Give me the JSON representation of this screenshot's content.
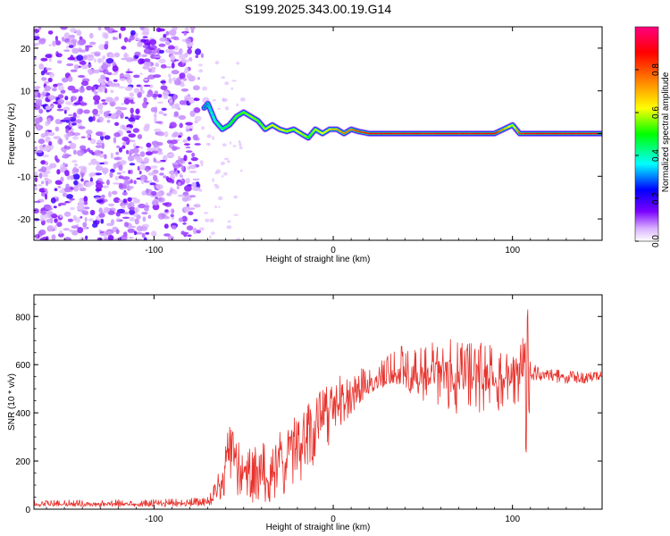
{
  "title": "S199.2025.343.00.19.G14",
  "chart_data": [
    {
      "type": "heatmap",
      "xlabel": "Height of straight line (km)",
      "ylabel": "Frequency (Hz)",
      "xlim": [
        -167,
        150
      ],
      "ylim": [
        -25,
        25
      ],
      "xticks": [
        -100,
        0,
        100
      ],
      "xtick_labels": [
        "-100",
        "0",
        "100"
      ],
      "yticks": [
        20,
        10,
        0,
        -10,
        -20
      ],
      "ytick_labels": [
        "20",
        "10",
        "0",
        "-10",
        "-20"
      ],
      "grid": false,
      "colorbar": {
        "label": "Normalized spectral amplitude",
        "range": [
          0,
          1
        ],
        "ticks": [
          0.0,
          0.2,
          0.4,
          0.6,
          0.8
        ],
        "tick_labels": [
          "0.0",
          "0.2",
          "0.4",
          "0.6",
          "0.8"
        ],
        "colors": [
          "#ffffff",
          "#c080ff",
          "#6a00ff",
          "#0000ff",
          "#00ffff",
          "#00ff00",
          "#ffff00",
          "#ff8000",
          "#ff0000",
          "#ff0080"
        ]
      },
      "noise_region_x": [
        -167,
        -75
      ],
      "signal_trace": {
        "x": [
          -72,
          -70,
          -66,
          -62,
          -58,
          -54,
          -50,
          -46,
          -42,
          -38,
          -34,
          -30,
          -26,
          -22,
          -18,
          -14,
          -10,
          -6,
          -2,
          2,
          6,
          10,
          14,
          20,
          30,
          40,
          50,
          60,
          70,
          80,
          90,
          100,
          104,
          108,
          120,
          135,
          150
        ],
        "freq": [
          6,
          7,
          3,
          1,
          2,
          4,
          5,
          4,
          3,
          1,
          2,
          1,
          0.5,
          1,
          0,
          -1,
          1,
          0,
          1,
          1,
          0,
          1,
          0.5,
          0,
          0,
          0,
          0,
          0,
          0,
          0,
          0,
          2,
          0,
          0,
          0,
          0,
          0
        ],
        "amplitude": [
          0.3,
          0.35,
          0.4,
          0.45,
          0.5,
          0.55,
          0.55,
          0.6,
          0.55,
          0.6,
          0.65,
          0.7,
          0.6,
          0.6,
          0.65,
          0.55,
          0.6,
          0.65,
          0.7,
          0.75,
          0.8,
          0.8,
          0.85,
          0.9,
          0.9,
          0.9,
          0.9,
          0.9,
          0.9,
          0.9,
          0.9,
          0.6,
          0.85,
          0.9,
          0.9,
          0.9,
          0.9
        ]
      }
    },
    {
      "type": "line",
      "xlabel": "Height of straight line (km)",
      "ylabel": "SNR (10 * v/v)",
      "xlim": [
        -167,
        150
      ],
      "ylim": [
        0,
        890
      ],
      "xticks": [
        -100,
        0,
        100
      ],
      "xtick_labels": [
        "-100",
        "0",
        "100"
      ],
      "yticks": [
        0,
        200,
        400,
        600,
        800
      ],
      "ytick_labels": [
        "0",
        "200",
        "400",
        "600",
        "800"
      ],
      "grid": false,
      "series": [
        {
          "name": "SNR",
          "color": "#e8322c",
          "x": [
            -167,
            -140,
            -110,
            -80,
            -70,
            -66,
            -62,
            -60,
            -57,
            -54,
            -51,
            -48,
            -45,
            -42,
            -39,
            -36,
            -33,
            -30,
            -27,
            -24,
            -21,
            -18,
            -15,
            -12,
            -9,
            -6,
            -3,
            0,
            5,
            10,
            15,
            20,
            25,
            30,
            35,
            40,
            45,
            50,
            55,
            60,
            65,
            70,
            75,
            80,
            85,
            90,
            95,
            100,
            103,
            105,
            108,
            109,
            110,
            112,
            115,
            120,
            125,
            130,
            135,
            140,
            145,
            150
          ],
          "y": [
            20,
            22,
            21,
            25,
            30,
            60,
            120,
            180,
            240,
            210,
            130,
            170,
            90,
            160,
            140,
            70,
            180,
            210,
            150,
            260,
            280,
            250,
            300,
            330,
            340,
            380,
            410,
            420,
            450,
            470,
            500,
            520,
            530,
            540,
            550,
            555,
            550,
            540,
            560,
            555,
            560,
            545,
            560,
            545,
            555,
            540,
            550,
            560,
            540,
            530,
            540,
            545,
            555,
            560,
            560,
            555,
            550,
            545,
            550,
            545,
            550,
            545
          ],
          "envelope_hi": [
            35,
            40,
            40,
            45,
            50,
            110,
            200,
            300,
            360,
            300,
            270,
            260,
            280,
            240,
            290,
            210,
            300,
            330,
            360,
            380,
            400,
            420,
            430,
            460,
            480,
            500,
            520,
            540,
            560,
            570,
            580,
            600,
            620,
            650,
            660,
            690,
            700,
            710,
            700,
            690,
            720,
            700,
            710,
            690,
            700,
            670,
            680,
            650,
            620,
            700,
            760,
            890,
            620,
            600,
            590,
            580,
            580,
            575,
            575,
            570,
            575,
            570
          ],
          "envelope_lo": [
            10,
            10,
            10,
            10,
            15,
            20,
            30,
            40,
            60,
            40,
            30,
            40,
            20,
            40,
            30,
            20,
            40,
            60,
            50,
            90,
            120,
            110,
            150,
            170,
            190,
            220,
            260,
            300,
            350,
            390,
            440,
            480,
            500,
            510,
            520,
            500,
            470,
            440,
            420,
            420,
            400,
            380,
            400,
            380,
            390,
            400,
            420,
            440,
            420,
            380,
            220,
            330,
            520,
            530,
            535,
            530,
            525,
            520,
            525,
            520,
            525,
            520
          ]
        }
      ]
    }
  ]
}
